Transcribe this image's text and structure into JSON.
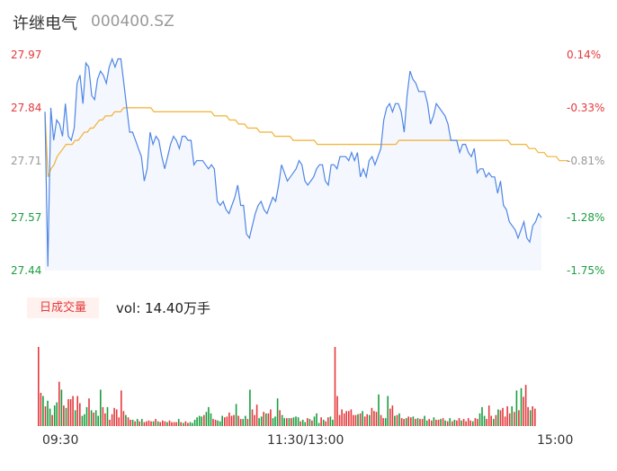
{
  "header": {
    "name": "许继电气",
    "code": "000400.SZ"
  },
  "volume": {
    "badge": "日成交量",
    "label": "vol: 14.40万手"
  },
  "colors": {
    "up": "#e4393c",
    "down": "#1a9e3f",
    "neutral": "#999999",
    "price_line": "#4f86e6",
    "avg_line": "#f2b233",
    "area_fill": "#f4f7fd"
  },
  "chart_data": [
    {
      "type": "line",
      "y_ticks": [
        "27.97",
        "27.84",
        "27.71",
        "27.57",
        "27.44"
      ],
      "y_tick_values": [
        27.97,
        27.84,
        27.71,
        27.57,
        27.44
      ],
      "pct_ticks": [
        "0.14%",
        "-0.33%",
        "-0.81%",
        "-1.28%",
        "-1.75%"
      ],
      "ylim": [
        27.44,
        27.97
      ],
      "x_tick_labels": [
        "09:30",
        "11:30/13:00",
        "15:00"
      ],
      "series": [
        {
          "values": [
            27.83,
            27.45,
            27.84,
            27.76,
            27.81,
            27.8,
            27.77,
            27.85,
            27.77,
            27.76,
            27.79,
            27.9,
            27.92,
            27.85,
            27.95,
            27.94,
            27.87,
            27.86,
            27.91,
            27.93,
            27.92,
            27.9,
            27.94,
            27.96,
            27.94,
            27.96,
            27.96,
            27.9,
            27.84,
            27.78,
            27.78,
            27.76,
            27.74,
            27.72,
            27.66,
            27.69,
            27.78,
            27.75,
            27.77,
            27.76,
            27.72,
            27.69,
            27.72,
            27.75,
            27.77,
            27.76,
            27.74,
            27.77,
            27.77,
            27.76,
            27.76,
            27.7,
            27.71,
            27.71,
            27.71,
            27.7,
            27.69,
            27.7,
            27.69,
            27.61,
            27.6,
            27.61,
            27.59,
            27.58,
            27.6,
            27.62,
            27.65,
            27.6,
            27.6,
            27.53,
            27.52,
            27.55,
            27.58,
            27.6,
            27.61,
            27.59,
            27.58,
            27.6,
            27.62,
            27.61,
            27.65,
            27.7,
            27.68,
            27.66,
            27.67,
            27.68,
            27.69,
            27.71,
            27.7,
            27.66,
            27.65,
            27.66,
            27.67,
            27.69,
            27.7,
            27.7,
            27.66,
            27.65,
            27.7,
            27.7,
            27.69,
            27.72,
            27.72,
            27.72,
            27.71,
            27.73,
            27.71,
            27.73,
            27.67,
            27.69,
            27.67,
            27.71,
            27.72,
            27.7,
            27.72,
            27.74,
            27.81,
            27.84,
            27.85,
            27.83,
            27.85,
            27.85,
            27.83,
            27.78,
            27.87,
            27.93,
            27.91,
            27.9,
            27.88,
            27.88,
            27.88,
            27.85,
            27.8,
            27.82,
            27.85,
            27.84,
            27.83,
            27.82,
            27.8,
            27.76,
            27.76,
            27.76,
            27.73,
            27.75,
            27.75,
            27.73,
            27.72,
            27.74,
            27.68,
            27.69,
            27.69,
            27.67,
            27.68,
            27.67,
            27.67,
            27.63,
            27.66,
            27.6,
            27.59,
            27.56,
            27.55,
            27.54,
            27.52,
            27.54,
            27.56,
            27.52,
            27.51,
            27.55,
            27.56,
            27.58,
            27.57
          ],
          "color": "#4f86e6"
        },
        {
          "values": [
            27.83,
            27.67,
            27.69,
            27.7,
            27.72,
            27.73,
            27.74,
            27.75,
            27.75,
            27.75,
            27.76,
            27.76,
            27.77,
            27.78,
            27.78,
            27.79,
            27.79,
            27.8,
            27.81,
            27.81,
            27.82,
            27.82,
            27.82,
            27.83,
            27.83,
            27.83,
            27.84,
            27.84,
            27.84,
            27.84,
            27.84,
            27.84,
            27.84,
            27.84,
            27.84,
            27.84,
            27.83,
            27.83,
            27.83,
            27.83,
            27.83,
            27.83,
            27.83,
            27.83,
            27.83,
            27.83,
            27.83,
            27.83,
            27.83,
            27.83,
            27.83,
            27.83,
            27.83,
            27.83,
            27.83,
            27.83,
            27.82,
            27.82,
            27.82,
            27.82,
            27.82,
            27.81,
            27.81,
            27.81,
            27.8,
            27.8,
            27.8,
            27.79,
            27.79,
            27.79,
            27.79,
            27.78,
            27.78,
            27.78,
            27.78,
            27.78,
            27.77,
            27.77,
            27.77,
            27.77,
            27.77,
            27.77,
            27.76,
            27.76,
            27.76,
            27.76,
            27.76,
            27.76,
            27.76,
            27.76,
            27.75,
            27.75,
            27.75,
            27.75,
            27.75,
            27.75,
            27.75,
            27.75,
            27.75,
            27.75,
            27.75,
            27.75,
            27.75,
            27.75,
            27.75,
            27.75,
            27.75,
            27.75,
            27.75,
            27.75,
            27.75,
            27.75,
            27.75,
            27.75,
            27.75,
            27.75,
            27.75,
            27.76,
            27.76,
            27.76,
            27.76,
            27.76,
            27.76,
            27.76,
            27.76,
            27.76,
            27.76,
            27.76,
            27.76,
            27.76,
            27.76,
            27.76,
            27.76,
            27.76,
            27.76,
            27.76,
            27.76,
            27.76,
            27.76,
            27.76,
            27.76,
            27.76,
            27.76,
            27.76,
            27.76,
            27.76,
            27.76,
            27.76,
            27.76,
            27.76,
            27.76,
            27.76,
            27.76,
            27.76,
            27.75,
            27.75,
            27.75,
            27.75,
            27.75,
            27.75,
            27.74,
            27.74,
            27.74,
            27.73,
            27.73,
            27.73,
            27.72,
            27.72,
            27.72,
            27.72,
            27.71,
            27.71,
            27.71,
            27.71
          ],
          "color": "#f2b233"
        }
      ]
    },
    {
      "type": "bar",
      "ylim": [
        0,
        100
      ],
      "values": [
        100,
        42,
        38,
        25,
        32,
        22,
        14,
        26,
        30,
        56,
        46,
        26,
        23,
        34,
        34,
        38,
        20,
        38,
        29,
        13,
        15,
        24,
        35,
        20,
        17,
        20,
        13,
        46,
        24,
        16,
        24,
        8,
        15,
        23,
        21,
        11,
        45,
        19,
        14,
        11,
        8,
        8,
        6,
        9,
        6,
        9,
        5,
        6,
        7,
        6,
        6,
        9,
        6,
        5,
        7,
        6,
        5,
        7,
        5,
        5,
        5,
        9,
        5,
        4,
        6,
        4,
        5,
        4,
        8,
        11,
        13,
        12,
        14,
        18,
        24,
        16,
        9,
        8,
        7,
        6,
        13,
        11,
        12,
        17,
        13,
        14,
        28,
        13,
        9,
        9,
        13,
        9,
        46,
        21,
        14,
        27,
        10,
        12,
        18,
        16,
        16,
        21,
        10,
        12,
        35,
        20,
        14,
        10,
        10,
        10,
        10,
        11,
        12,
        11,
        6,
        8,
        5,
        10,
        9,
        7,
        12,
        16,
        4,
        11,
        8,
        6,
        11,
        12,
        8,
        100,
        38,
        14,
        21,
        16,
        19,
        19,
        21,
        14,
        14,
        15,
        16,
        19,
        12,
        15,
        14,
        23,
        19,
        18,
        40,
        14,
        10,
        10,
        38,
        22,
        26,
        13,
        14,
        16,
        10,
        9,
        10,
        12,
        11,
        12,
        9,
        10,
        9,
        9,
        13,
        7,
        9,
        7,
        11,
        8,
        8,
        9,
        10,
        7,
        6,
        10,
        6,
        8,
        7,
        10,
        7,
        9,
        6,
        10,
        7,
        6,
        10,
        9,
        16,
        24,
        13,
        9,
        26,
        13,
        9,
        14,
        21,
        20,
        23,
        12,
        25,
        16,
        25,
        18,
        45,
        20,
        48,
        37,
        52,
        24,
        20,
        25,
        22
      ],
      "dir": [
        1,
        1,
        0,
        1,
        0,
        0,
        1,
        0,
        0,
        1,
        0,
        1,
        0,
        1,
        1,
        1,
        0,
        1,
        1,
        0,
        0,
        0,
        1,
        0,
        1,
        0,
        0,
        0,
        1,
        1,
        0,
        1,
        1,
        1,
        1,
        1,
        1,
        1,
        0,
        1,
        1,
        0,
        1,
        0,
        1,
        0,
        1,
        1,
        1,
        1,
        0,
        1,
        0,
        1,
        1,
        1,
        0,
        1,
        1,
        1,
        1,
        0,
        1,
        0,
        1,
        1,
        0,
        0,
        0,
        0,
        0,
        0,
        1,
        0,
        0,
        0,
        1,
        1,
        0,
        0,
        0,
        1,
        1,
        1,
        1,
        1,
        0,
        1,
        1,
        0,
        0,
        1,
        0,
        1,
        1,
        1,
        0,
        0,
        1,
        0,
        1,
        1,
        0,
        0,
        0,
        1,
        0,
        0,
        1,
        0,
        1,
        0,
        0,
        0,
        1,
        0,
        0,
        1,
        0,
        1,
        0,
        0,
        0,
        1,
        0,
        1,
        1,
        0,
        0,
        1,
        1,
        1,
        1,
        1,
        1,
        1,
        1,
        1,
        1,
        0,
        1,
        0,
        1,
        1,
        0,
        1,
        1,
        1,
        0,
        1,
        1,
        0,
        0,
        1,
        1,
        0,
        1,
        0,
        1,
        1,
        0,
        1,
        1,
        0,
        1,
        0,
        1,
        1,
        0,
        0,
        1,
        1,
        0,
        1,
        1,
        0,
        1,
        0,
        1,
        0,
        1,
        0,
        1,
        1,
        0,
        1,
        1,
        1,
        1,
        0,
        1,
        1,
        0,
        0,
        0,
        1,
        1,
        1,
        0,
        1,
        0,
        1,
        1,
        1,
        1,
        1,
        0,
        1,
        0,
        1,
        0,
        1,
        1,
        1,
        0,
        1,
        1,
        0,
        1,
        1
      ]
    }
  ]
}
